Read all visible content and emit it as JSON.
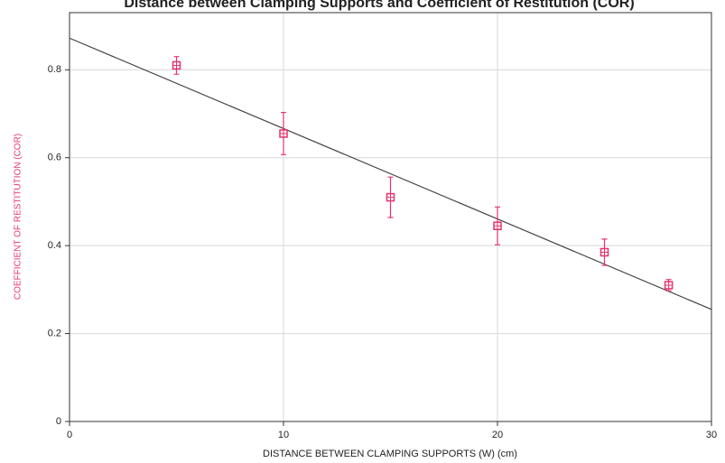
{
  "chart_data": {
    "type": "scatter",
    "title": "Distance between Clamping Supports and Coefficient of Restitution (COR)",
    "x_label": "DISTANCE BETWEEN CLAMPING SUPPORTS (W) (cm)",
    "y_label": "COEFFICIENT OF RESTITUTION (COR)",
    "xlim": [
      0,
      30
    ],
    "ylim": [
      0,
      0.93
    ],
    "xticks": [
      0,
      10,
      20,
      30
    ],
    "yticks": [
      0,
      0.2,
      0.4,
      0.6,
      0.8
    ],
    "grid": true,
    "series": [
      {
        "color": "#e8336b",
        "x": [
          5,
          10,
          15,
          20,
          25,
          28
        ],
        "values": [
          0.81,
          0.655,
          0.51,
          0.445,
          0.385,
          0.31
        ],
        "errors": [
          0.02,
          0.048,
          0.046,
          0.043,
          0.03,
          0.013
        ]
      }
    ],
    "fit": {
      "color": "#444444",
      "x": [
        0,
        30
      ],
      "y": [
        0.872,
        0.255
      ]
    }
  }
}
